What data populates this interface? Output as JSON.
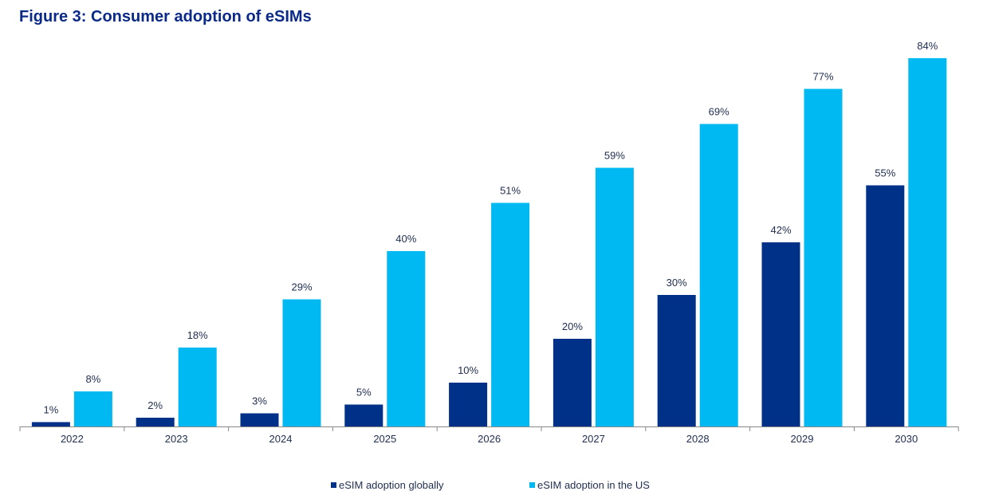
{
  "chart_data": {
    "type": "bar",
    "title": "Figure 3: Consumer adoption of eSIMs",
    "categories": [
      "2022",
      "2023",
      "2024",
      "2025",
      "2026",
      "2027",
      "2028",
      "2029",
      "2030"
    ],
    "series": [
      {
        "name": "eSIM adoption globally",
        "color": "#003189",
        "values": [
          1,
          2,
          3,
          5,
          10,
          20,
          30,
          42,
          55
        ],
        "labels": [
          "1%",
          "2%",
          "3%",
          "5%",
          "10%",
          "20%",
          "30%",
          "42%",
          "55%"
        ]
      },
      {
        "name": "eSIM adoption in the US",
        "color": "#00b9f2",
        "values": [
          8,
          18,
          29,
          40,
          51,
          59,
          69,
          77,
          84
        ],
        "labels": [
          "8%",
          "18%",
          "29%",
          "40%",
          "51%",
          "59%",
          "69%",
          "77%",
          "84%"
        ]
      }
    ],
    "ylim": [
      0,
      84
    ],
    "grid": false,
    "legend_position": "bottom"
  }
}
